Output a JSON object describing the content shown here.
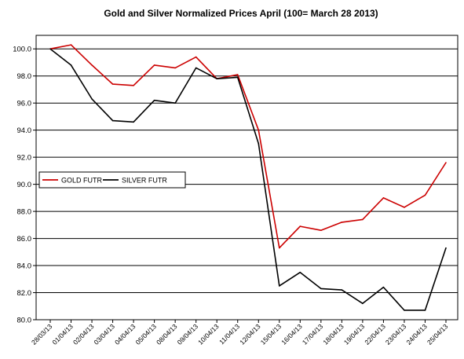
{
  "chart_data": {
    "type": "line",
    "title": "Gold and Silver Normalized Prices  April (100= March 28 2013)",
    "xlabel": "",
    "ylabel": "",
    "ylim": [
      80,
      101
    ],
    "yticks": [
      "80.0",
      "82.0",
      "84.0",
      "86.0",
      "88.0",
      "90.0",
      "92.0",
      "94.0",
      "96.0",
      "98.0",
      "100.0"
    ],
    "grid": true,
    "legend_position": "center-left",
    "categories": [
      "28/03/13",
      "01/04/13",
      "02/04/13",
      "03/04/13",
      "04/04/13",
      "05/04/13",
      "08/04/13",
      "09/04/13",
      "10/04/13",
      "11/04/13",
      "12/04/13",
      "15/04/13",
      "16/04/13",
      "17/04/13",
      "18/04/13",
      "19/04/13",
      "22/04/13",
      "23/04/13",
      "24/04/13",
      "25/04/13"
    ],
    "series": [
      {
        "name": "GOLD  FUTR",
        "color": "#cc0000",
        "values": [
          100.0,
          100.3,
          98.8,
          97.4,
          97.3,
          98.8,
          98.6,
          99.4,
          97.8,
          98.1,
          94.0,
          85.3,
          86.9,
          86.6,
          87.2,
          87.4,
          89.0,
          88.3,
          89.2,
          91.6
        ]
      },
      {
        "name": "SILVER  FUTR",
        "color": "#000000",
        "values": [
          100.0,
          98.8,
          96.3,
          94.7,
          94.6,
          96.2,
          96.0,
          98.6,
          97.8,
          97.9,
          93.0,
          82.5,
          83.5,
          82.3,
          82.2,
          81.2,
          82.4,
          80.7,
          80.7,
          85.3
        ]
      }
    ]
  }
}
